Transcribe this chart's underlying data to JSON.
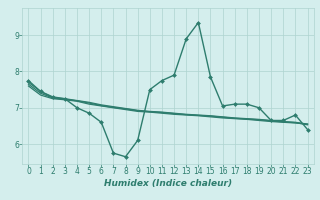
{
  "xlabel": "Humidex (Indice chaleur)",
  "x": [
    0,
    1,
    2,
    3,
    4,
    5,
    6,
    7,
    8,
    9,
    10,
    11,
    12,
    13,
    14,
    15,
    16,
    17,
    18,
    19,
    20,
    21,
    22,
    23
  ],
  "lines": [
    {
      "y": [
        7.75,
        7.45,
        7.3,
        7.25,
        7.0,
        6.85,
        6.6,
        5.75,
        5.65,
        6.1,
        7.5,
        7.75,
        7.9,
        8.9,
        9.35,
        7.85,
        7.05,
        7.1,
        7.1,
        7.0,
        6.65,
        6.65,
        6.8,
        6.4
      ],
      "color": "#2e7d6e",
      "marker": "D",
      "markersize": 2.0,
      "linewidth": 1.0
    },
    {
      "y": [
        7.6,
        7.35,
        7.25,
        7.22,
        7.18,
        7.1,
        7.05,
        7.0,
        6.95,
        6.9,
        6.88,
        6.85,
        6.82,
        6.8,
        6.78,
        6.75,
        6.72,
        6.7,
        6.68,
        6.65,
        6.62,
        6.6,
        6.58,
        6.55
      ],
      "color": "#2e7d6e",
      "marker": null,
      "linewidth": 0.9
    },
    {
      "y": [
        7.7,
        7.45,
        7.28,
        7.25,
        7.2,
        7.15,
        7.08,
        7.03,
        6.98,
        6.93,
        6.9,
        6.88,
        6.85,
        6.82,
        6.8,
        6.78,
        6.75,
        6.72,
        6.7,
        6.68,
        6.65,
        6.62,
        6.6,
        6.55
      ],
      "color": "#2e7d6e",
      "marker": null,
      "linewidth": 0.9
    },
    {
      "y": [
        7.65,
        7.4,
        7.27,
        7.24,
        7.19,
        7.13,
        7.06,
        7.01,
        6.97,
        6.92,
        6.89,
        6.87,
        6.84,
        6.81,
        6.79,
        6.77,
        6.74,
        6.71,
        6.69,
        6.67,
        6.64,
        6.61,
        6.59,
        6.53
      ],
      "color": "#2e7d6e",
      "marker": null,
      "linewidth": 0.9
    }
  ],
  "xlim": [
    -0.5,
    23.5
  ],
  "ylim": [
    5.45,
    9.75
  ],
  "yticks": [
    6,
    7,
    8,
    9
  ],
  "xticks": [
    0,
    1,
    2,
    3,
    4,
    5,
    6,
    7,
    8,
    9,
    10,
    11,
    12,
    13,
    14,
    15,
    16,
    17,
    18,
    19,
    20,
    21,
    22,
    23
  ],
  "bg_color": "#d4eeed",
  "grid_color": "#aed4d0",
  "tick_color": "#2e7d6e",
  "label_color": "#2e7d6e",
  "tick_fontsize": 5.5,
  "label_fontsize": 6.5
}
